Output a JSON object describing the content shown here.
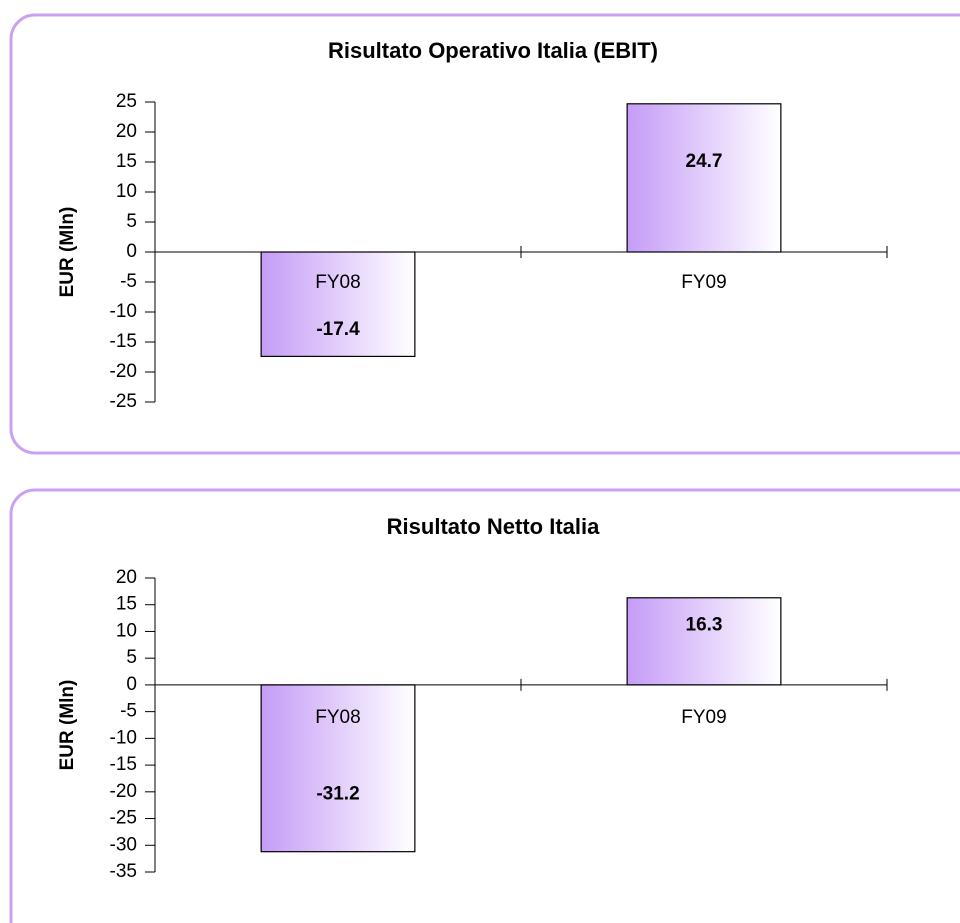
{
  "chart_data": [
    {
      "type": "bar",
      "title": "Risultato Operativo Italia (EBIT)",
      "y_label": "EUR (Mln)",
      "categories": [
        "FY08",
        "FY09"
      ],
      "values": [
        -17.4,
        24.7
      ],
      "color": "#c59cf7",
      "ylim": [
        -25,
        25
      ],
      "yticks": [
        25,
        20,
        15,
        10,
        5,
        0,
        -5,
        -10,
        -15,
        -20,
        -25
      ]
    },
    {
      "type": "bar",
      "title": "Risultato Netto Italia",
      "y_label": "EUR (Mln)",
      "categories": [
        "FY08",
        "FY09"
      ],
      "values": [
        -31.2,
        16.3
      ],
      "color": "#c59cf7",
      "ylim": [
        -35,
        20
      ],
      "yticks": [
        20,
        15,
        10,
        5,
        0,
        -5,
        -10,
        -15,
        -20,
        -25,
        -30,
        -35
      ]
    }
  ]
}
